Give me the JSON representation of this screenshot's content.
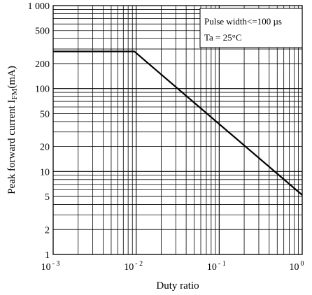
{
  "chart_data": {
    "type": "line",
    "title": "",
    "xlabel": "Duty ratio",
    "ylabel": "Peak forward current",
    "ylabel_symbol": "I",
    "ylabel_subscript": "FM",
    "ylabel_unit": "(mA)",
    "x_scale": "log",
    "y_scale": "log",
    "xlim": [
      0.001,
      1
    ],
    "ylim": [
      1,
      1000
    ],
    "grid": true,
    "x_ticks": [
      {
        "value": 0.001,
        "base": "10",
        "exp": "- 3"
      },
      {
        "value": 0.01,
        "base": "10",
        "exp": "- 2"
      },
      {
        "value": 0.1,
        "base": "10",
        "exp": "- 1"
      },
      {
        "value": 1,
        "base": "10",
        "exp": "0"
      }
    ],
    "y_ticks": [
      {
        "value": 1,
        "label": "1"
      },
      {
        "value": 2,
        "label": "2"
      },
      {
        "value": 5,
        "label": "5"
      },
      {
        "value": 10,
        "label": "10"
      },
      {
        "value": 20,
        "label": "20"
      },
      {
        "value": 50,
        "label": "50"
      },
      {
        "value": 100,
        "label": "100"
      },
      {
        "value": 200,
        "label": "200"
      },
      {
        "value": 500,
        "label": "500"
      },
      {
        "value": 1000,
        "label": "1 000"
      }
    ],
    "series": [
      {
        "x": [
          0.001,
          0.0095,
          1
        ],
        "y": [
          280,
          280,
          5.2
        ]
      }
    ],
    "annotations": [
      "Pulse width<=100 µs",
      "Ta = 25°C"
    ],
    "legend_placement": "top-right"
  }
}
